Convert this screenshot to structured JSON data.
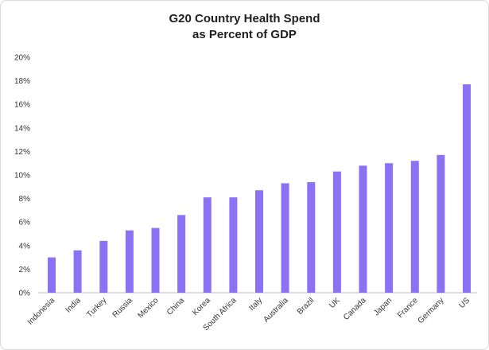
{
  "chart_data": {
    "type": "bar",
    "title_lines": [
      "G20 Country Health Spend",
      "as Percent of GDP"
    ],
    "categories": [
      "Indonesia",
      "India",
      "Turkey",
      "Russia",
      "Mexico",
      "China",
      "Korea",
      "South Africa",
      "Italy",
      "Australia",
      "Brazil",
      "UK",
      "Canada",
      "Japan",
      "France",
      "Germany",
      "US"
    ],
    "values": [
      3.0,
      3.6,
      4.4,
      5.3,
      5.5,
      6.6,
      8.1,
      8.1,
      8.7,
      9.3,
      9.4,
      10.3,
      10.8,
      11.0,
      11.2,
      11.7,
      17.7
    ],
    "ylim": [
      0,
      20
    ],
    "yticks": [
      "0%",
      "2%",
      "4%",
      "6%",
      "8%",
      "10%",
      "12%",
      "14%",
      "16%",
      "18%",
      "20%"
    ],
    "grid": false,
    "legend": "none",
    "bar_color": "#8b72f5"
  }
}
